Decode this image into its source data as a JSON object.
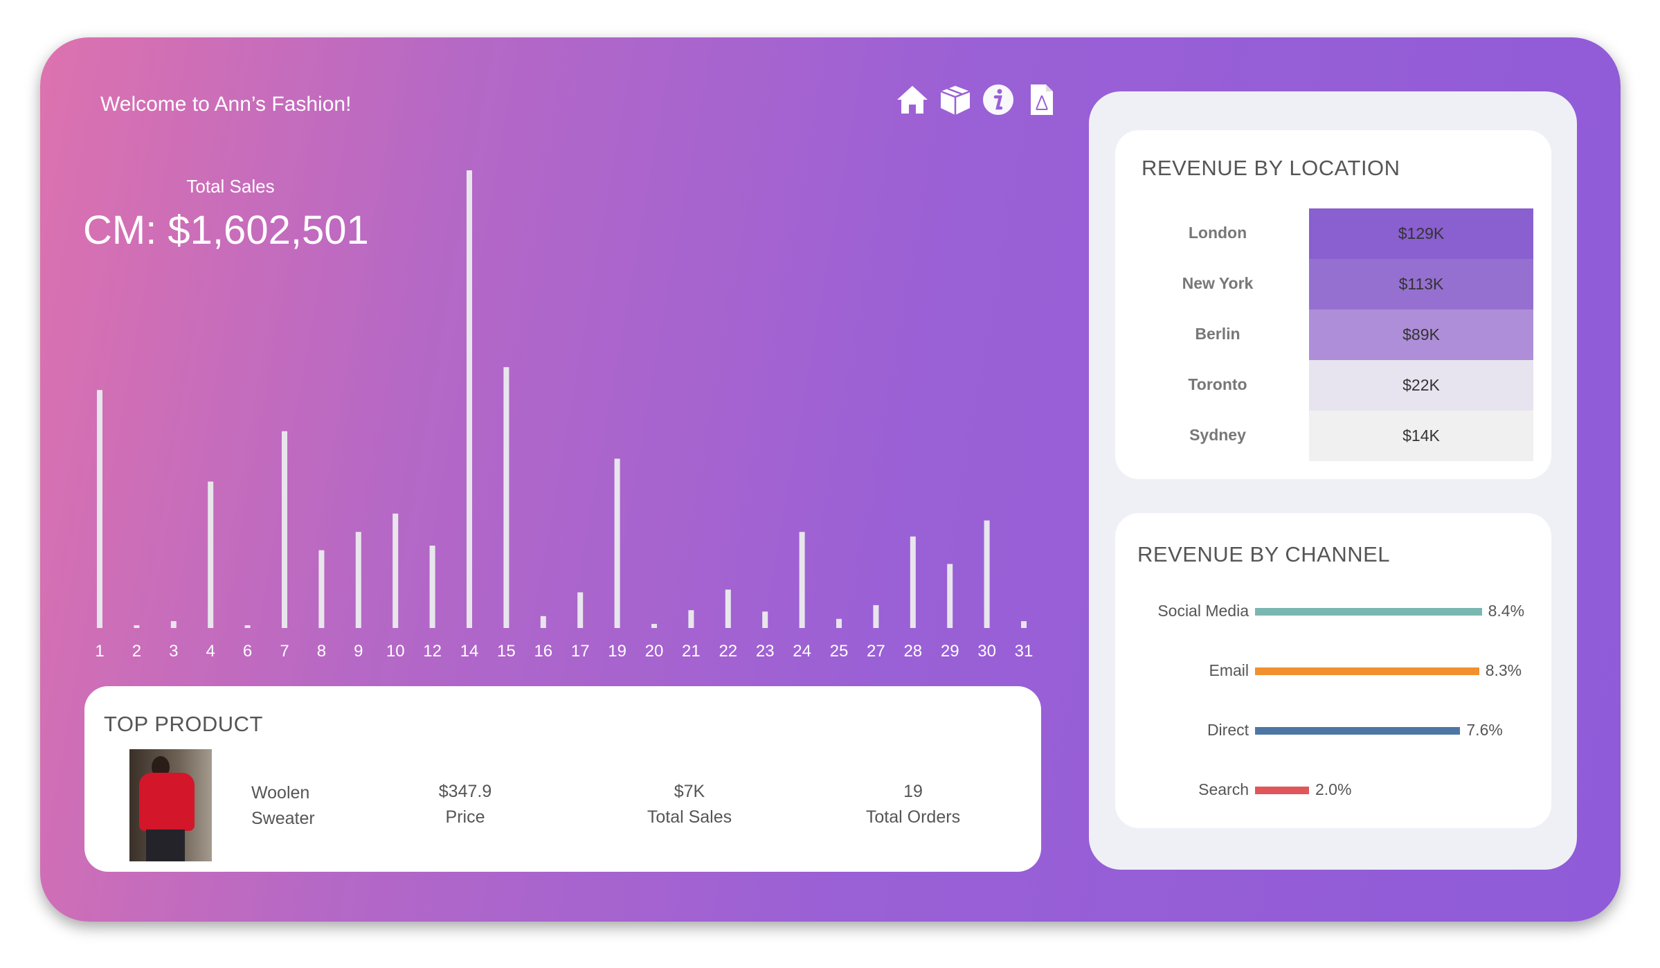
{
  "header": {
    "welcome": "Welcome to Ann’s Fashion!",
    "icons": [
      "home-icon",
      "box-icon",
      "info-icon",
      "pdf-icon"
    ]
  },
  "kpi": {
    "label": "Total Sales",
    "value": "CM: $1,602,501"
  },
  "chart_data": {
    "type": "bar",
    "categories": [
      "1",
      "2",
      "3",
      "4",
      "6",
      "7",
      "8",
      "9",
      "10",
      "12",
      "14",
      "15",
      "16",
      "17",
      "19",
      "20",
      "21",
      "22",
      "23",
      "24",
      "25",
      "27",
      "28",
      "29",
      "30",
      "31"
    ],
    "values": [
      52,
      0.6,
      1.5,
      32,
      0.6,
      43,
      17,
      21,
      25,
      18,
      100,
      57,
      2.6,
      7.8,
      37,
      0.9,
      3.9,
      8.4,
      3.6,
      21,
      2,
      5,
      20,
      14,
      23.5,
      1.5
    ],
    "value_unit": "percent of maximum day (no value axis shown)",
    "bar_color": "#e8e6ec",
    "grid": false
  },
  "product": {
    "title": "TOP PRODUCT",
    "name_line1": "Woolen",
    "name_line2": "Sweater",
    "price": "$347.9",
    "price_label": "Price",
    "sales": "$7K",
    "sales_label": "Total Sales",
    "orders": "19",
    "orders_label": "Total Orders"
  },
  "location": {
    "title": "REVENUE BY LOCATION",
    "rows": [
      {
        "name": "London",
        "value": "$129K",
        "color": "#8a5fcf"
      },
      {
        "name": "New York",
        "value": "$113K",
        "color": "#9670d0"
      },
      {
        "name": "Berlin",
        "value": "$89K",
        "color": "#ae8ed9"
      },
      {
        "name": "Toronto",
        "value": "$22K",
        "color": "#e7e4ef"
      },
      {
        "name": "Sydney",
        "value": "$14K",
        "color": "#f0f0f0"
      }
    ]
  },
  "channel": {
    "title": "REVENUE BY CHANNEL",
    "rows": [
      {
        "name": "Social Media",
        "value": 8.4,
        "label": "8.4%",
        "color": "#79b7b0"
      },
      {
        "name": "Email",
        "value": 8.3,
        "label": "8.3%",
        "color": "#f0902e"
      },
      {
        "name": "Direct",
        "value": 7.6,
        "label": "7.6%",
        "color": "#4e76a5"
      },
      {
        "name": "Search",
        "value": 2.0,
        "label": "2.0%",
        "color": "#e0565b"
      }
    ]
  }
}
